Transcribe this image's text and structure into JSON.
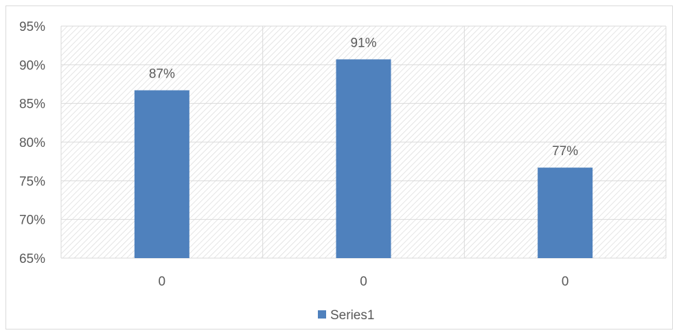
{
  "chart_data": {
    "type": "bar",
    "categories": [
      "0",
      "0",
      "0"
    ],
    "series": [
      {
        "name": "Series1",
        "values": [
          0.867,
          0.907,
          0.767
        ],
        "data_labels": [
          "87%",
          "91%",
          "77%"
        ]
      }
    ],
    "ylim": [
      0.65,
      0.95
    ],
    "yticks": [
      0.65,
      0.7,
      0.75,
      0.8,
      0.85,
      0.9,
      0.95
    ],
    "ytick_labels": [
      "65%",
      "70%",
      "75%",
      "80%",
      "85%",
      "90%",
      "95%"
    ],
    "grid": true,
    "legend": "bottom",
    "colors": {
      "bar": "#4f81bd",
      "grid": "#d9d9d9",
      "hatch": "#d9d9d9",
      "text": "#595959"
    }
  }
}
